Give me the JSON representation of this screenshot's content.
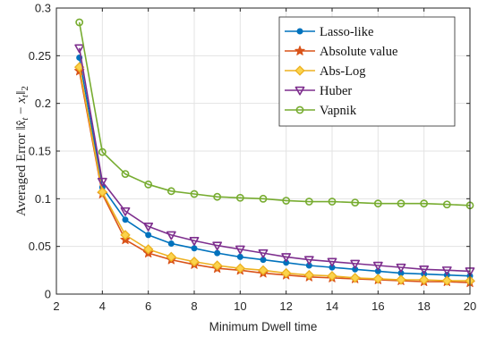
{
  "chart_data": {
    "type": "line",
    "title": "",
    "xlabel": "Minimum Dwell time",
    "ylabel": "Averaged Error ||x̂ₜ − xₜ||₂",
    "xlim": [
      2,
      20
    ],
    "ylim": [
      0,
      0.3
    ],
    "xticks": [
      2,
      4,
      6,
      8,
      10,
      12,
      14,
      16,
      18,
      20
    ],
    "yticks": [
      0,
      0.05,
      0.1,
      0.15,
      0.2,
      0.25,
      0.3
    ],
    "xtick_labels": [
      "2",
      "4",
      "6",
      "8",
      "10",
      "12",
      "14",
      "16",
      "18",
      "20"
    ],
    "ytick_labels": [
      "0",
      "0.05",
      "0.1",
      "0.15",
      "0.2",
      "0.25",
      "0.3"
    ],
    "grid": true,
    "legend_position": "top-right",
    "x": [
      3,
      4,
      5,
      6,
      7,
      8,
      9,
      10,
      11,
      12,
      13,
      14,
      15,
      16,
      17,
      18,
      19,
      20
    ],
    "series": [
      {
        "name": "Lasso-like",
        "color": "#0072BD",
        "marker": "circle",
        "values": [
          0.248,
          0.112,
          0.078,
          0.062,
          0.053,
          0.048,
          0.043,
          0.039,
          0.036,
          0.033,
          0.03,
          0.028,
          0.026,
          0.024,
          0.022,
          0.021,
          0.02,
          0.019
        ]
      },
      {
        "name": "Absolute value",
        "color": "#D95319",
        "marker": "star",
        "values": [
          0.234,
          0.105,
          0.057,
          0.043,
          0.036,
          0.031,
          0.027,
          0.025,
          0.022,
          0.02,
          0.018,
          0.017,
          0.016,
          0.015,
          0.014,
          0.013,
          0.013,
          0.012
        ]
      },
      {
        "name": "Abs-Log",
        "color": "#EDB120",
        "marker": "diamond",
        "values": [
          0.238,
          0.107,
          0.062,
          0.047,
          0.039,
          0.034,
          0.03,
          0.027,
          0.025,
          0.022,
          0.02,
          0.019,
          0.017,
          0.016,
          0.015,
          0.015,
          0.014,
          0.014
        ]
      },
      {
        "name": "Huber",
        "color": "#7E2F8E",
        "marker": "triangle-down",
        "values": [
          0.258,
          0.118,
          0.087,
          0.071,
          0.062,
          0.056,
          0.051,
          0.047,
          0.043,
          0.039,
          0.036,
          0.034,
          0.032,
          0.03,
          0.028,
          0.026,
          0.025,
          0.024
        ]
      },
      {
        "name": "Vapnik",
        "color": "#77AC30",
        "marker": "circle-open",
        "values": [
          0.285,
          0.149,
          0.126,
          0.115,
          0.108,
          0.105,
          0.102,
          0.101,
          0.1,
          0.098,
          0.097,
          0.097,
          0.096,
          0.095,
          0.095,
          0.095,
          0.094,
          0.093
        ]
      }
    ]
  }
}
